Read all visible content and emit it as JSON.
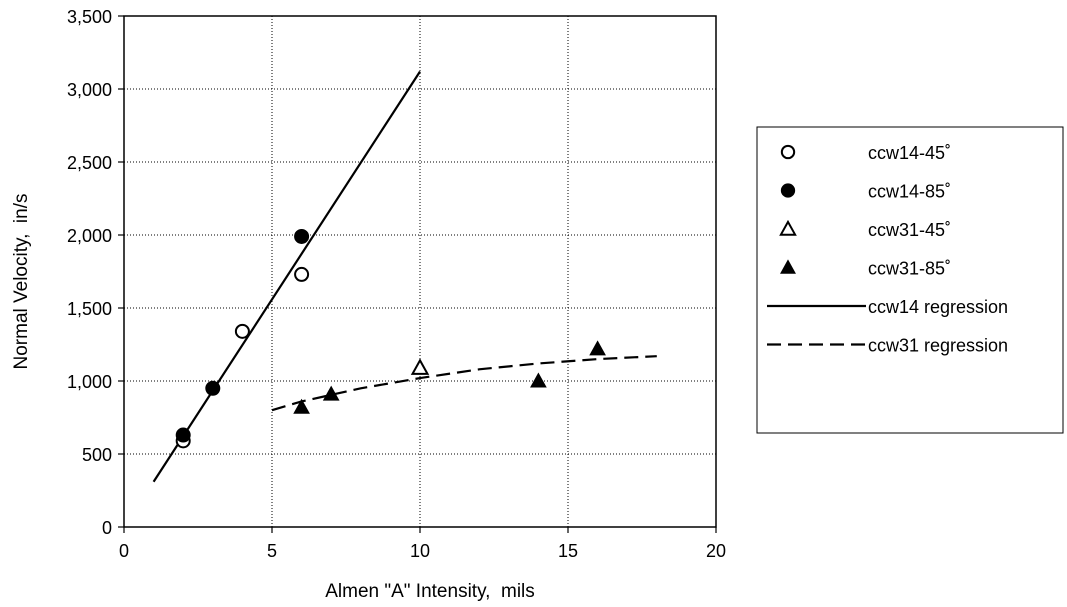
{
  "chart_data": {
    "type": "scatter",
    "title": "",
    "xlabel": "Almen \"A\" Intensity,  mils",
    "ylabel": "Normal Velocity,  in/s",
    "xlim": [
      0,
      20
    ],
    "ylim": [
      0,
      3500
    ],
    "xticks": [
      0,
      5,
      10,
      15,
      20
    ],
    "yticks": [
      0,
      500,
      1000,
      1500,
      2000,
      2500,
      3000,
      3500
    ],
    "xtick_labels": [
      "0",
      "5",
      "10",
      "15",
      "20"
    ],
    "ytick_labels": [
      "0",
      "500",
      "1,000",
      "1,500",
      "2,000",
      "2,500",
      "3,000",
      "3,500"
    ],
    "grid": true,
    "legend_position": "right",
    "series": [
      {
        "name": "ccw14-45˚",
        "marker": "circle-open",
        "points": [
          {
            "x": 2,
            "y": 590
          },
          {
            "x": 4,
            "y": 1340
          },
          {
            "x": 6,
            "y": 1730
          }
        ]
      },
      {
        "name": "ccw14-85˚",
        "marker": "circle-filled",
        "points": [
          {
            "x": 2,
            "y": 630
          },
          {
            "x": 3,
            "y": 950
          },
          {
            "x": 6,
            "y": 1990
          }
        ]
      },
      {
        "name": "ccw31-45˚",
        "marker": "triangle-open",
        "points": [
          {
            "x": 10,
            "y": 1090
          }
        ]
      },
      {
        "name": "ccw31-85˚",
        "marker": "triangle-filled",
        "points": [
          {
            "x": 6,
            "y": 820
          },
          {
            "x": 7,
            "y": 910
          },
          {
            "x": 14,
            "y": 1000
          },
          {
            "x": 16,
            "y": 1220
          }
        ]
      },
      {
        "name": "ccw14 regression",
        "marker": "line-solid",
        "line": [
          {
            "x": 1,
            "y": 310
          },
          {
            "x": 10,
            "y": 3120
          }
        ]
      },
      {
        "name": "ccw31 regression",
        "marker": "line-dashed",
        "line": [
          {
            "x": 5,
            "y": 800
          },
          {
            "x": 6,
            "y": 860
          },
          {
            "x": 8,
            "y": 950
          },
          {
            "x": 10,
            "y": 1020
          },
          {
            "x": 12,
            "y": 1080
          },
          {
            "x": 14,
            "y": 1120
          },
          {
            "x": 16,
            "y": 1150
          },
          {
            "x": 18,
            "y": 1170
          }
        ]
      }
    ]
  }
}
